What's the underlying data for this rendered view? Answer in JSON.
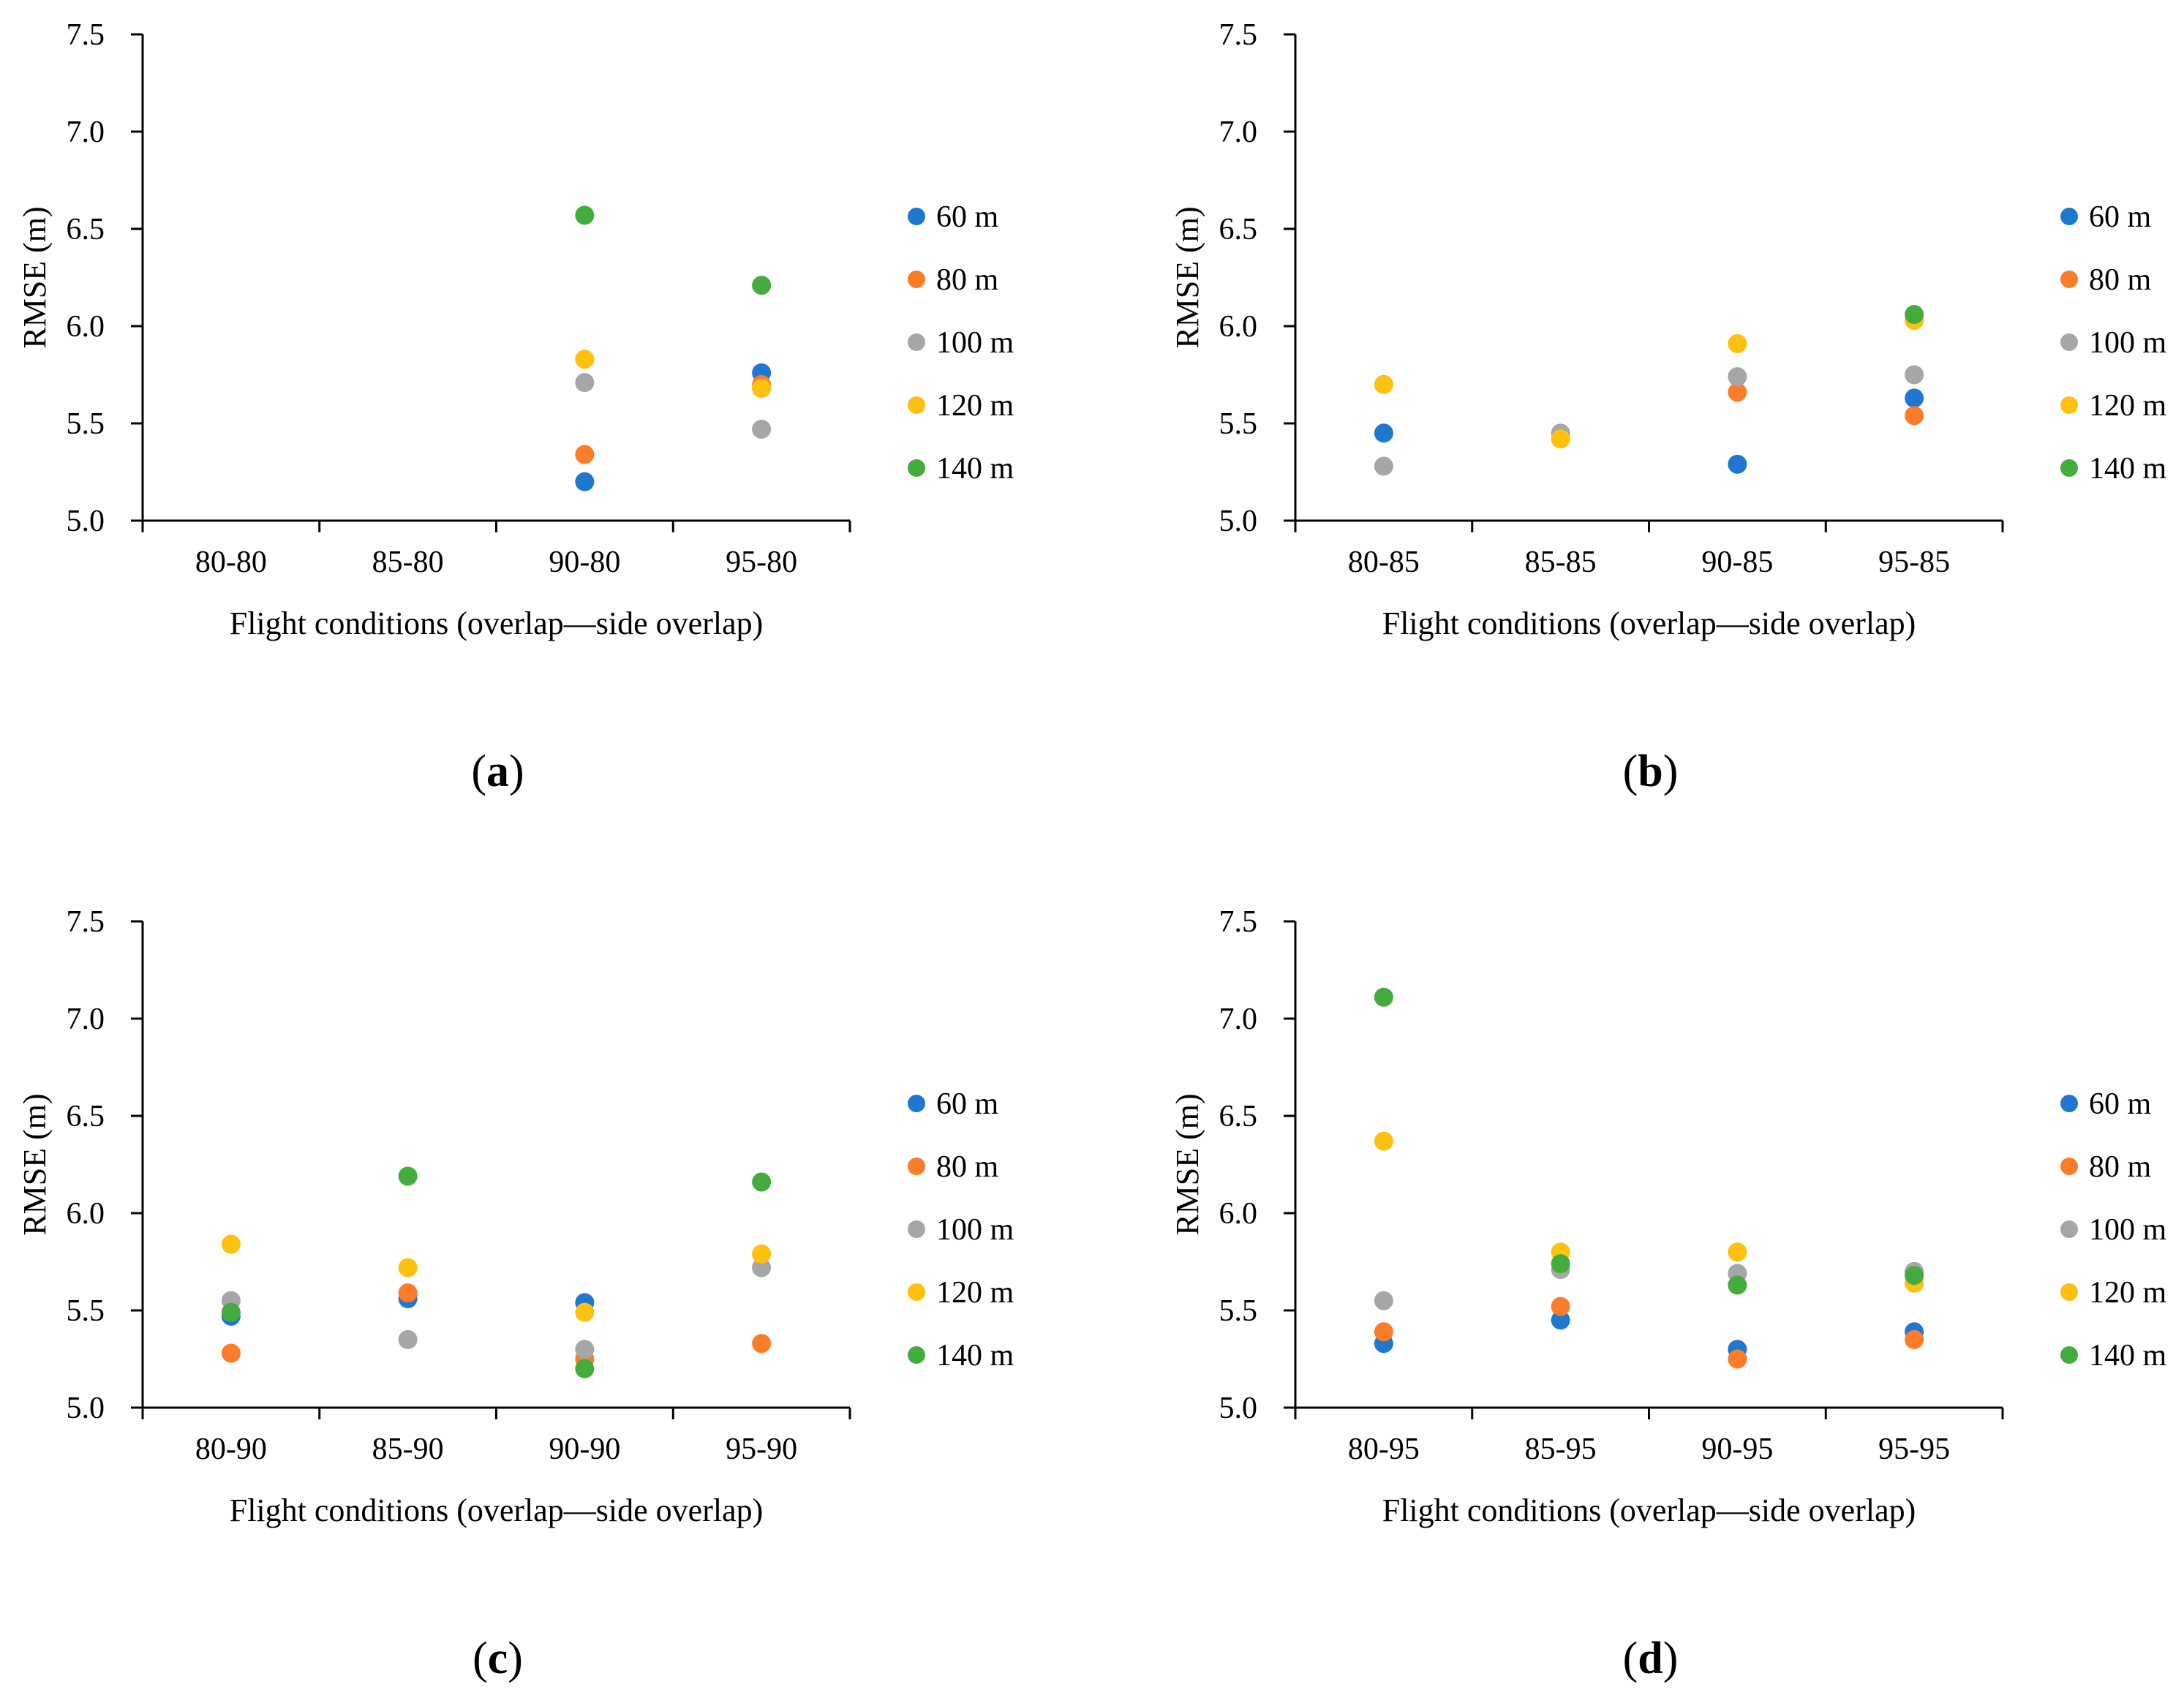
{
  "figure": {
    "legend_labels": [
      "60 m",
      "80 m",
      "100 m",
      "120 m",
      "140 m"
    ],
    "series_colors": [
      "#1f77d0",
      "#fb7d29",
      "#a6a6a6",
      "#fec110",
      "#43ac3c"
    ]
  },
  "chart_data": [
    {
      "type": "scatter",
      "panel_label": "(a)",
      "panel_letter": "a",
      "categories": [
        "80-80",
        "85-80",
        "90-80",
        "95-80"
      ],
      "xlabel": "Flight conditions (overlap—side overlap)",
      "ylabel": "RMSE (m)",
      "ylim": [
        5.0,
        7.5
      ],
      "yticks": [
        "5.0",
        "5.5",
        "6.0",
        "6.5",
        "7.0",
        "7.5"
      ],
      "series": [
        {
          "name": "60 m",
          "values": [
            null,
            null,
            5.2,
            5.76
          ]
        },
        {
          "name": "80 m",
          "values": [
            null,
            null,
            5.34,
            5.7
          ]
        },
        {
          "name": "100 m",
          "values": [
            null,
            null,
            5.71,
            5.47
          ]
        },
        {
          "name": "120 m",
          "values": [
            null,
            null,
            5.83,
            5.68
          ]
        },
        {
          "name": "140 m",
          "values": [
            null,
            null,
            6.57,
            6.21
          ]
        }
      ]
    },
    {
      "type": "scatter",
      "panel_label": "(b)",
      "panel_letter": "b",
      "categories": [
        "80-85",
        "85-85",
        "90-85",
        "95-85"
      ],
      "xlabel": "Flight conditions (overlap—side overlap)",
      "ylabel": "RMSE (m)",
      "ylim": [
        5.0,
        7.5
      ],
      "yticks": [
        "5.0",
        "5.5",
        "6.0",
        "6.5",
        "7.0",
        "7.5"
      ],
      "series": [
        {
          "name": "60 m",
          "values": [
            5.45,
            null,
            5.29,
            5.63
          ]
        },
        {
          "name": "80 m",
          "values": [
            null,
            null,
            5.66,
            5.54
          ]
        },
        {
          "name": "100 m",
          "values": [
            5.28,
            5.45,
            5.74,
            5.75
          ]
        },
        {
          "name": "120 m",
          "values": [
            5.7,
            5.42,
            5.91,
            6.03
          ]
        },
        {
          "name": "140 m",
          "values": [
            null,
            null,
            null,
            6.06
          ]
        }
      ]
    },
    {
      "type": "scatter",
      "panel_label": "(c)",
      "panel_letter": "c",
      "categories": [
        "80-90",
        "85-90",
        "90-90",
        "95-90"
      ],
      "xlabel": "Flight conditions (overlap—side overlap)",
      "ylabel": "RMSE (m)",
      "ylim": [
        5.0,
        7.5
      ],
      "yticks": [
        "5.0",
        "5.5",
        "6.0",
        "6.5",
        "7.0",
        "7.5"
      ],
      "series": [
        {
          "name": "60 m",
          "values": [
            5.47,
            5.56,
            5.54,
            null
          ]
        },
        {
          "name": "80 m",
          "values": [
            5.28,
            5.59,
            5.25,
            5.33
          ]
        },
        {
          "name": "100 m",
          "values": [
            5.55,
            5.35,
            5.3,
            5.72
          ]
        },
        {
          "name": "120 m",
          "values": [
            5.84,
            5.72,
            5.49,
            5.79
          ]
        },
        {
          "name": "140 m",
          "values": [
            5.49,
            6.19,
            5.2,
            6.16
          ]
        }
      ]
    },
    {
      "type": "scatter",
      "panel_label": "(d)",
      "panel_letter": "d",
      "categories": [
        "80-95",
        "85-95",
        "90-95",
        "95-95"
      ],
      "xlabel": "Flight conditions (overlap—side overlap)",
      "ylabel": "RMSE (m)",
      "ylim": [
        5.0,
        7.5
      ],
      "yticks": [
        "5.0",
        "5.5",
        "6.0",
        "6.5",
        "7.0",
        "7.5"
      ],
      "series": [
        {
          "name": "60 m",
          "values": [
            5.33,
            5.45,
            5.3,
            5.39
          ]
        },
        {
          "name": "80 m",
          "values": [
            5.39,
            5.52,
            5.25,
            5.35
          ]
        },
        {
          "name": "100 m",
          "values": [
            5.55,
            5.71,
            5.69,
            5.7
          ]
        },
        {
          "name": "120 m",
          "values": [
            6.37,
            5.8,
            5.8,
            5.64
          ]
        },
        {
          "name": "140 m",
          "values": [
            7.11,
            5.74,
            5.63,
            5.68
          ]
        }
      ]
    }
  ]
}
